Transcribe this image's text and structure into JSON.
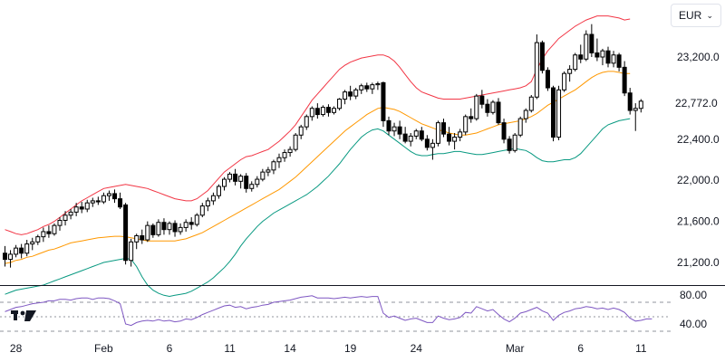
{
  "currency": {
    "label": "EUR",
    "options_icon": "chevron-down-icon"
  },
  "logo": {
    "name": "tv-logo-icon"
  },
  "last_price_label": "22,772.0",
  "chart_data": [
    {
      "type": "candlestick",
      "title": "",
      "x_ticks": [
        "28",
        "Feb",
        "6",
        "11",
        "14",
        "19",
        "24",
        "Mar",
        "6",
        "11"
      ],
      "y_ticks": [
        "21,200.0",
        "21,600.0",
        "22,000.0",
        "22,400.0",
        "23,200.0"
      ],
      "ylim": [
        21000,
        23550
      ],
      "last_price": 22772.0,
      "colors": {
        "up": "#ffffff",
        "down": "#000000",
        "wick": "#000000",
        "bb_upper": "#f23645",
        "bb_basis": "#ff9800",
        "bb_lower": "#089981"
      },
      "candles": [
        [
          21290,
          21360,
          21160,
          21230
        ],
        [
          21230,
          21320,
          21150,
          21280
        ],
        [
          21280,
          21370,
          21250,
          21340
        ],
        [
          21340,
          21380,
          21240,
          21290
        ],
        [
          21290,
          21420,
          21260,
          21380
        ],
        [
          21380,
          21440,
          21320,
          21400
        ],
        [
          21400,
          21470,
          21370,
          21450
        ],
        [
          21450,
          21540,
          21400,
          21500
        ],
        [
          21500,
          21560,
          21440,
          21480
        ],
        [
          21480,
          21580,
          21460,
          21560
        ],
        [
          21560,
          21640,
          21510,
          21610
        ],
        [
          21610,
          21700,
          21560,
          21660
        ],
        [
          21660,
          21720,
          21620,
          21690
        ],
        [
          21690,
          21780,
          21650,
          21740
        ],
        [
          21740,
          21790,
          21680,
          21720
        ],
        [
          21720,
          21810,
          21690,
          21780
        ],
        [
          21780,
          21830,
          21740,
          21800
        ],
        [
          21800,
          21840,
          21760,
          21790
        ],
        [
          21790,
          21880,
          21770,
          21850
        ],
        [
          21850,
          21900,
          21800,
          21870
        ],
        [
          21870,
          21910,
          21780,
          21820
        ],
        [
          21820,
          21880,
          21720,
          21740
        ],
        [
          21760,
          21780,
          21180,
          21220
        ],
        [
          21220,
          21430,
          21160,
          21400
        ],
        [
          21400,
          21480,
          21330,
          21460
        ],
        [
          21460,
          21520,
          21380,
          21420
        ],
        [
          21420,
          21600,
          21400,
          21560
        ],
        [
          21560,
          21580,
          21440,
          21470
        ],
        [
          21470,
          21620,
          21450,
          21590
        ],
        [
          21590,
          21630,
          21470,
          21520
        ],
        [
          21520,
          21600,
          21470,
          21580
        ],
        [
          21580,
          21610,
          21450,
          21500
        ],
        [
          21500,
          21580,
          21470,
          21540
        ],
        [
          21540,
          21620,
          21500,
          21590
        ],
        [
          21590,
          21640,
          21520,
          21570
        ],
        [
          21570,
          21680,
          21550,
          21660
        ],
        [
          21660,
          21780,
          21640,
          21750
        ],
        [
          21750,
          21830,
          21700,
          21800
        ],
        [
          21800,
          21880,
          21760,
          21850
        ],
        [
          21850,
          21960,
          21820,
          21940
        ],
        [
          21940,
          22030,
          21900,
          22010
        ],
        [
          22010,
          22080,
          21980,
          22060
        ],
        [
          22060,
          22110,
          21950,
          21990
        ],
        [
          21990,
          22060,
          21920,
          22040
        ],
        [
          22040,
          22070,
          21880,
          21920
        ],
        [
          21920,
          21990,
          21890,
          21960
        ],
        [
          21960,
          22040,
          21930,
          22010
        ],
        [
          22010,
          22110,
          21990,
          22080
        ],
        [
          22080,
          22130,
          22040,
          22100
        ],
        [
          22100,
          22200,
          22060,
          22180
        ],
        [
          22180,
          22260,
          22120,
          22220
        ],
        [
          22220,
          22300,
          22180,
          22270
        ],
        [
          22270,
          22330,
          22230,
          22300
        ],
        [
          22300,
          22460,
          22280,
          22440
        ],
        [
          22440,
          22540,
          22400,
          22520
        ],
        [
          22520,
          22640,
          22490,
          22620
        ],
        [
          22620,
          22720,
          22580,
          22700
        ],
        [
          22700,
          22750,
          22600,
          22640
        ],
        [
          22640,
          22730,
          22620,
          22710
        ],
        [
          22710,
          22740,
          22620,
          22660
        ],
        [
          22660,
          22720,
          22640,
          22700
        ],
        [
          22700,
          22800,
          22680,
          22790
        ],
        [
          22790,
          22880,
          22740,
          22860
        ],
        [
          22860,
          22920,
          22780,
          22820
        ],
        [
          22820,
          22900,
          22790,
          22880
        ],
        [
          22880,
          22940,
          22840,
          22920
        ],
        [
          22920,
          22950,
          22860,
          22890
        ],
        [
          22890,
          22950,
          22840,
          22930
        ],
        [
          22930,
          22960,
          22880,
          22940
        ],
        [
          22950,
          22960,
          22520,
          22580
        ],
        [
          22580,
          22620,
          22440,
          22480
        ],
        [
          22480,
          22560,
          22430,
          22520
        ],
        [
          22520,
          22580,
          22400,
          22450
        ],
        [
          22450,
          22520,
          22360,
          22380
        ],
        [
          22380,
          22460,
          22330,
          22430
        ],
        [
          22430,
          22500,
          22400,
          22480
        ],
        [
          22480,
          22520,
          22380,
          22400
        ],
        [
          22400,
          22440,
          22290,
          22320
        ],
        [
          22320,
          22400,
          22200,
          22360
        ],
        [
          22360,
          22580,
          22330,
          22560
        ],
        [
          22560,
          22600,
          22420,
          22450
        ],
        [
          22450,
          22520,
          22340,
          22380
        ],
        [
          22380,
          22460,
          22300,
          22420
        ],
        [
          22420,
          22500,
          22380,
          22470
        ],
        [
          22470,
          22640,
          22440,
          22620
        ],
        [
          22620,
          22700,
          22560,
          22600
        ],
        [
          22600,
          22840,
          22580,
          22820
        ],
        [
          22820,
          22880,
          22700,
          22740
        ],
        [
          22740,
          22790,
          22620,
          22660
        ],
        [
          22660,
          22780,
          22640,
          22760
        ],
        [
          22760,
          22800,
          22540,
          22560
        ],
        [
          22560,
          22600,
          22360,
          22400
        ],
        [
          22400,
          22430,
          22260,
          22290
        ],
        [
          22290,
          22460,
          22270,
          22440
        ],
        [
          22440,
          22620,
          22420,
          22600
        ],
        [
          22600,
          22700,
          22560,
          22680
        ],
        [
          22680,
          22830,
          22660,
          22810
        ],
        [
          22810,
          23420,
          22790,
          23340
        ],
        [
          23340,
          23360,
          23040,
          23070
        ],
        [
          23070,
          23100,
          22870,
          22900
        ],
        [
          22900,
          22920,
          22380,
          22420
        ],
        [
          22420,
          22920,
          22390,
          22880
        ],
        [
          22880,
          23060,
          22860,
          23040
        ],
        [
          23040,
          23120,
          22960,
          23080
        ],
        [
          23080,
          23240,
          23060,
          23220
        ],
        [
          23220,
          23320,
          23140,
          23180
        ],
        [
          23180,
          23460,
          23160,
          23420
        ],
        [
          23420,
          23520,
          23200,
          23240
        ],
        [
          23240,
          23380,
          23160,
          23200
        ],
        [
          23200,
          23280,
          23120,
          23260
        ],
        [
          23260,
          23300,
          23100,
          23140
        ],
        [
          23140,
          23260,
          23100,
          23220
        ],
        [
          23220,
          23240,
          23060,
          23100
        ],
        [
          23100,
          23160,
          22820,
          22850
        ],
        [
          22850,
          22900,
          22640,
          22680
        ],
        [
          22680,
          22750,
          22480,
          22700
        ],
        [
          22700,
          22790,
          22660,
          22770
        ]
      ],
      "bb_upper": [
        21520,
        21500,
        21480,
        21470,
        21480,
        21500,
        21520,
        21550,
        21570,
        21600,
        21640,
        21680,
        21720,
        21760,
        21800,
        21830,
        21860,
        21890,
        21920,
        21930,
        21940,
        21950,
        21960,
        21950,
        21940,
        21930,
        21920,
        21900,
        21880,
        21860,
        21840,
        21820,
        21810,
        21800,
        21800,
        21820,
        21860,
        21900,
        21960,
        22020,
        22080,
        22120,
        22160,
        22200,
        22230,
        22240,
        22260,
        22280,
        22300,
        22340,
        22380,
        22430,
        22480,
        22540,
        22620,
        22700,
        22780,
        22840,
        22900,
        22960,
        23020,
        23080,
        23120,
        23150,
        23170,
        23190,
        23200,
        23210,
        23220,
        23220,
        23200,
        23160,
        23100,
        23030,
        22960,
        22900,
        22860,
        22840,
        22820,
        22800,
        22790,
        22790,
        22790,
        22790,
        22800,
        22810,
        22820,
        22830,
        22840,
        22850,
        22860,
        22870,
        22880,
        22890,
        22900,
        22920,
        22960,
        23080,
        23180,
        23260,
        23320,
        23380,
        23420,
        23460,
        23500,
        23530,
        23560,
        23580,
        23600,
        23600,
        23600,
        23590,
        23580,
        23560,
        23570
      ],
      "bb_basis": [
        21190,
        21200,
        21220,
        21230,
        21250,
        21260,
        21280,
        21300,
        21320,
        21330,
        21350,
        21370,
        21390,
        21400,
        21410,
        21420,
        21430,
        21440,
        21445,
        21450,
        21455,
        21455,
        21450,
        21440,
        21430,
        21420,
        21410,
        21410,
        21410,
        21410,
        21410,
        21410,
        21420,
        21430,
        21450,
        21470,
        21490,
        21520,
        21550,
        21580,
        21610,
        21640,
        21670,
        21700,
        21730,
        21760,
        21790,
        21820,
        21850,
        21880,
        21910,
        21950,
        21990,
        22030,
        22080,
        22130,
        22180,
        22230,
        22280,
        22330,
        22380,
        22430,
        22480,
        22520,
        22560,
        22600,
        22640,
        22670,
        22700,
        22710,
        22700,
        22690,
        22670,
        22640,
        22610,
        22580,
        22550,
        22530,
        22510,
        22490,
        22480,
        22460,
        22450,
        22440,
        22440,
        22450,
        22460,
        22480,
        22500,
        22520,
        22540,
        22550,
        22560,
        22570,
        22580,
        22600,
        22620,
        22650,
        22690,
        22730,
        22760,
        22790,
        22820,
        22850,
        22880,
        22920,
        22960,
        23000,
        23030,
        23050,
        23060,
        23060,
        23050,
        23040,
        23040
      ],
      "bb_lower": [
        20890,
        20910,
        20930,
        20940,
        20950,
        20960,
        20970,
        20980,
        21000,
        21020,
        21040,
        21060,
        21080,
        21100,
        21120,
        21140,
        21160,
        21180,
        21200,
        21210,
        21220,
        21230,
        21240,
        21230,
        21160,
        21060,
        20980,
        20930,
        20900,
        20880,
        20870,
        20880,
        20890,
        20900,
        20920,
        20950,
        20980,
        21010,
        21050,
        21100,
        21150,
        21210,
        21280,
        21360,
        21430,
        21490,
        21550,
        21600,
        21640,
        21680,
        21710,
        21740,
        21770,
        21800,
        21830,
        21860,
        21900,
        21940,
        21990,
        22040,
        22100,
        22160,
        22230,
        22300,
        22360,
        22420,
        22460,
        22490,
        22500,
        22480,
        22440,
        22400,
        22360,
        22320,
        22280,
        22250,
        22240,
        22240,
        22250,
        22260,
        22260,
        22270,
        22280,
        22280,
        22270,
        22260,
        22250,
        22250,
        22260,
        22270,
        22280,
        22290,
        22300,
        22310,
        22300,
        22290,
        22260,
        22220,
        22190,
        22180,
        22180,
        22190,
        22200,
        22200,
        22220,
        22260,
        22320,
        22380,
        22440,
        22500,
        22540,
        22560,
        22580,
        22590,
        22600
      ],
      "rsi": {
        "y_ticks": [
          "80.00",
          "40.00"
        ],
        "ylim": [
          20,
          100
        ],
        "bands": [
          70,
          50,
          30
        ],
        "line_color": "#7e57c2",
        "values": [
          57,
          60,
          63,
          64,
          66,
          68,
          69,
          70,
          72,
          72,
          74,
          74,
          73,
          75,
          76,
          76,
          74,
          76,
          76,
          75,
          72,
          68,
          40,
          38,
          42,
          44,
          45,
          44,
          46,
          44,
          45,
          43,
          44,
          47,
          46,
          49,
          53,
          56,
          59,
          62,
          65,
          66,
          63,
          64,
          61,
          63,
          64,
          66,
          67,
          70,
          71,
          72,
          73,
          75,
          77,
          78,
          79,
          76,
          76,
          76,
          75,
          76,
          77,
          76,
          77,
          78,
          77,
          78,
          78,
          55,
          49,
          51,
          48,
          45,
          47,
          48,
          45,
          42,
          42,
          51,
          48,
          46,
          47,
          49,
          56,
          55,
          64,
          61,
          58,
          60,
          53,
          47,
          43,
          48,
          55,
          57,
          60,
          63,
          58,
          55,
          45,
          52,
          56,
          58,
          61,
          62,
          64,
          63,
          61,
          62,
          60,
          62,
          60,
          56,
          48,
          44,
          45,
          47,
          47
        ]
      }
    }
  ]
}
